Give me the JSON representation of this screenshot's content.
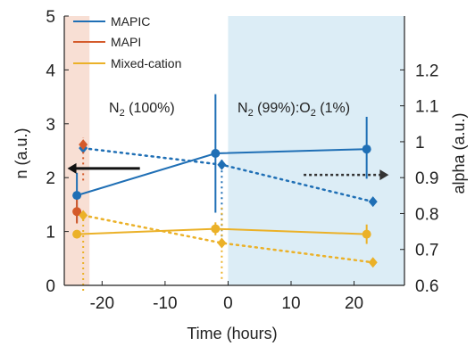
{
  "chart_data": {
    "type": "line",
    "xlabel": "Time (hours)",
    "ylabel_left": "n (a.u.)",
    "ylabel_right": "alpha (a.u.)",
    "xlim": [
      -26,
      28
    ],
    "ylim_left": [
      0,
      5
    ],
    "ylim_right": [
      0.6,
      1.35
    ],
    "xticks": [
      -20,
      -10,
      0,
      10,
      20
    ],
    "xtick_labels": [
      "-20",
      "-10",
      "0",
      "10",
      "20"
    ],
    "yticks_left": [
      0,
      1,
      2,
      3,
      4,
      5
    ],
    "ytick_labels_left": [
      "0",
      "1",
      "2",
      "3",
      "4",
      "5"
    ],
    "yticks_right": [
      0.6,
      0.7,
      0.8,
      0.9,
      1.0,
      1.1,
      1.2
    ],
    "ytick_labels_right": [
      "0.6",
      "0.7",
      "0.8",
      "0.9",
      "1",
      "1.1",
      "1.2"
    ],
    "grid": false,
    "legend_position": "top-left",
    "regions": [
      {
        "label_main": "N",
        "label_sub": "2",
        "label_rest": " (100%)",
        "x_range": [
          -26,
          -22
        ],
        "color": "#f8dfd4"
      },
      {
        "label_main": "N",
        "label_sub": "2",
        "label_rest": " (99%):O",
        "label_sub2": "2",
        "label_rest2": " (1%)",
        "x_range": [
          0,
          28
        ],
        "color": "#dcedf6"
      }
    ],
    "series": [
      {
        "name": "MAPIC",
        "color": "#1f6fb5",
        "n_points": [
          {
            "x": -24,
            "y": 1.67,
            "err_low": 0.5,
            "err_high": 0.42
          },
          {
            "x": -2,
            "y": 2.45,
            "err_low": 1.1,
            "err_high": 1.1
          },
          {
            "x": 22,
            "y": 2.53,
            "err_low": 0.55,
            "err_high": 0.6
          }
        ],
        "alpha_points": [
          {
            "x": -23,
            "y": 0.982
          },
          {
            "x": -1,
            "y": 0.936,
            "err_low": 0.2,
            "err_high": 0.02
          },
          {
            "x": 23,
            "y": 0.833
          }
        ]
      },
      {
        "name": "MAPI",
        "color": "#d45a2a",
        "n_points": [
          {
            "x": -24,
            "y": 1.37,
            "err_low": 0.22,
            "err_high": 0.22
          }
        ],
        "alpha_points": [
          {
            "x": -23,
            "y": 0.992,
            "err_low": 0.1,
            "err_high": 0.02
          }
        ]
      },
      {
        "name": "Mixed-cation",
        "color": "#ebb128",
        "n_points": [
          {
            "x": -24,
            "y": 0.95
          },
          {
            "x": -2,
            "y": 1.05,
            "err_low": 0.12,
            "err_high": 0.12
          },
          {
            "x": 22,
            "y": 0.95,
            "err_low": 0.18,
            "err_high": 0.18
          }
        ],
        "alpha_points": [
          {
            "x": -23,
            "y": 0.795,
            "err_low": 0.21,
            "err_high": 0.0
          },
          {
            "x": -1,
            "y": 0.718,
            "err_low": 0.1,
            "err_high": 0.1
          },
          {
            "x": 23,
            "y": 0.664
          }
        ]
      }
    ],
    "arrows": [
      {
        "from_x": -14,
        "to_x": -25.5,
        "y_left": 2.17,
        "style": "solid",
        "color": "#111111"
      },
      {
        "from_x": 12,
        "to_x": 25.5,
        "y_left": 2.05,
        "style": "dotted",
        "color": "#333333"
      }
    ]
  }
}
